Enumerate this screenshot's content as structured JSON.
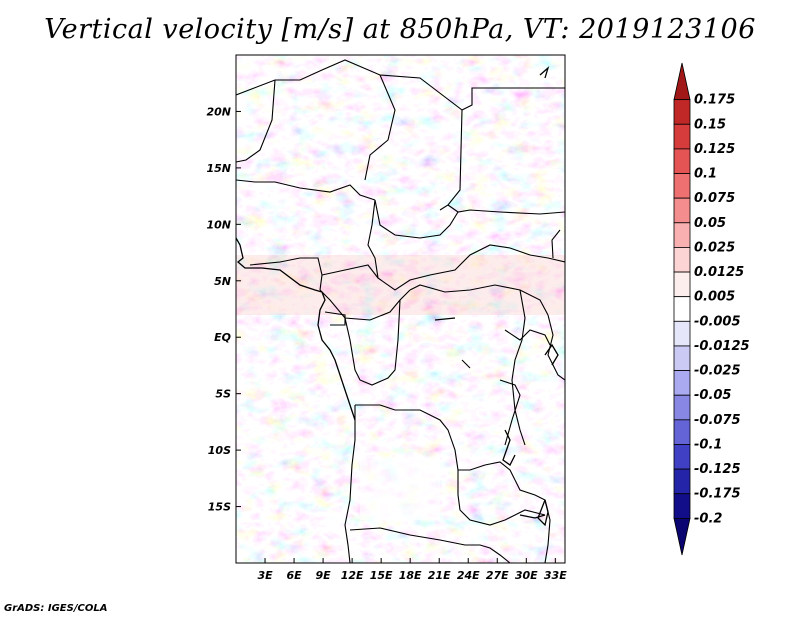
{
  "title": "Vertical velocity [m/s] at 850hPa, VT: 2019123106",
  "credit": "GrADS: IGES/COLA",
  "lat_labels": [
    "20N",
    "15N",
    "10N",
    "5N",
    "EQ",
    "5S",
    "10S",
    "15S"
  ],
  "lat_values": [
    20,
    15,
    10,
    5,
    0,
    -5,
    -10,
    -15
  ],
  "lon_labels": [
    "3E",
    "6E",
    "9E",
    "12E",
    "15E",
    "18E",
    "21E",
    "24E",
    "27E",
    "30E",
    "33E"
  ],
  "lon_values": [
    3,
    6,
    9,
    12,
    15,
    18,
    21,
    24,
    27,
    30,
    33
  ],
  "map_extent": {
    "lon_min": 0,
    "lon_max": 34,
    "lat_min": -20,
    "lat_max": 25
  },
  "colorbar": {
    "levels": [
      "0.175",
      "0.15",
      "0.125",
      "0.1",
      "0.075",
      "0.05",
      "0.025",
      "0.0125",
      "0.005",
      "-0.005",
      "-0.0125",
      "-0.025",
      "-0.05",
      "-0.075",
      "-0.1",
      "-0.125",
      "-0.175",
      "-0.2"
    ],
    "colors": [
      "#a01818",
      "#c02828",
      "#d63c3c",
      "#e45454",
      "#ee7070",
      "#f48e8e",
      "#f9b0b0",
      "#fcd4d4",
      "#fdeeee",
      "#ffffff",
      "#e6e6fb",
      "#cacaf5",
      "#aaaaf0",
      "#8888e4",
      "#6464d6",
      "#4040c4",
      "#2424a8",
      "#120e8a",
      "#0a0570"
    ]
  }
}
